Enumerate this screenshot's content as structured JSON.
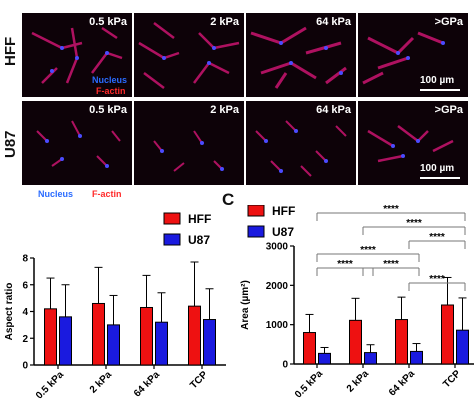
{
  "rows": [
    {
      "label": "HFF",
      "stiffness": [
        "0.5 kPa",
        "2 kPa",
        "64 kPa",
        ">GPa"
      ],
      "stain_nucleus": "Nucleus",
      "stain_factin": "F-actin",
      "scale": "100 µm"
    },
    {
      "label": "U87",
      "stiffness": [
        "0.5 kPa",
        "2 kPa",
        "64 kPa",
        ">GPa"
      ],
      "scale": "100 µm"
    }
  ],
  "below_legend": {
    "nucleus": "Nucleus",
    "factin": "F-actin"
  },
  "panel_c_label": "C",
  "colors": {
    "hff": "#ee1111",
    "u87": "#1a1adf",
    "nucleus": "#2a6bff",
    "factin": "#ff2a2a"
  },
  "chart_data": [
    {
      "type": "bar",
      "categories": [
        "0.5 kPa",
        "2 kPa",
        "64 kPa",
        "TCP"
      ],
      "ylabel": "Aspect ratio",
      "ylim": [
        0,
        8
      ],
      "yticks": [
        "0",
        "2",
        "4",
        "6",
        "8"
      ],
      "legend": "top-right",
      "series": [
        {
          "name": "HFF",
          "values": [
            4.2,
            4.6,
            4.3,
            4.4
          ],
          "errors": [
            2.3,
            2.7,
            2.4,
            3.3
          ]
        },
        {
          "name": "U87",
          "values": [
            3.6,
            3.0,
            3.2,
            3.4
          ],
          "errors": [
            2.4,
            2.2,
            2.2,
            2.3
          ]
        }
      ]
    },
    {
      "type": "bar",
      "categories": [
        "0.5 kPa",
        "2 kPa",
        "64 kPa",
        "TCP"
      ],
      "ylabel": "Area (µm²)",
      "ylim": [
        0,
        3000
      ],
      "yticks": [
        "0",
        "1000",
        "2000",
        "3000"
      ],
      "legend": "top-left",
      "series": [
        {
          "name": "HFF",
          "values": [
            800,
            1110,
            1130,
            1500
          ],
          "errors": [
            460,
            560,
            570,
            700
          ]
        },
        {
          "name": "U87",
          "values": [
            270,
            290,
            320,
            860
          ],
          "errors": [
            150,
            200,
            200,
            820
          ]
        }
      ],
      "significance": [
        {
          "from": 0,
          "to": 3,
          "label": "****"
        },
        {
          "from": 1,
          "to": 3,
          "label": "****"
        },
        {
          "from": 2,
          "to": 3,
          "label": "****"
        },
        {
          "from": 0,
          "to": 2,
          "label": "****"
        },
        {
          "from": 0,
          "to": 1,
          "label": "****"
        },
        {
          "from": 1,
          "to": 2,
          "label": "****"
        },
        {
          "from": 2,
          "to": 3,
          "label": "****"
        }
      ]
    }
  ]
}
